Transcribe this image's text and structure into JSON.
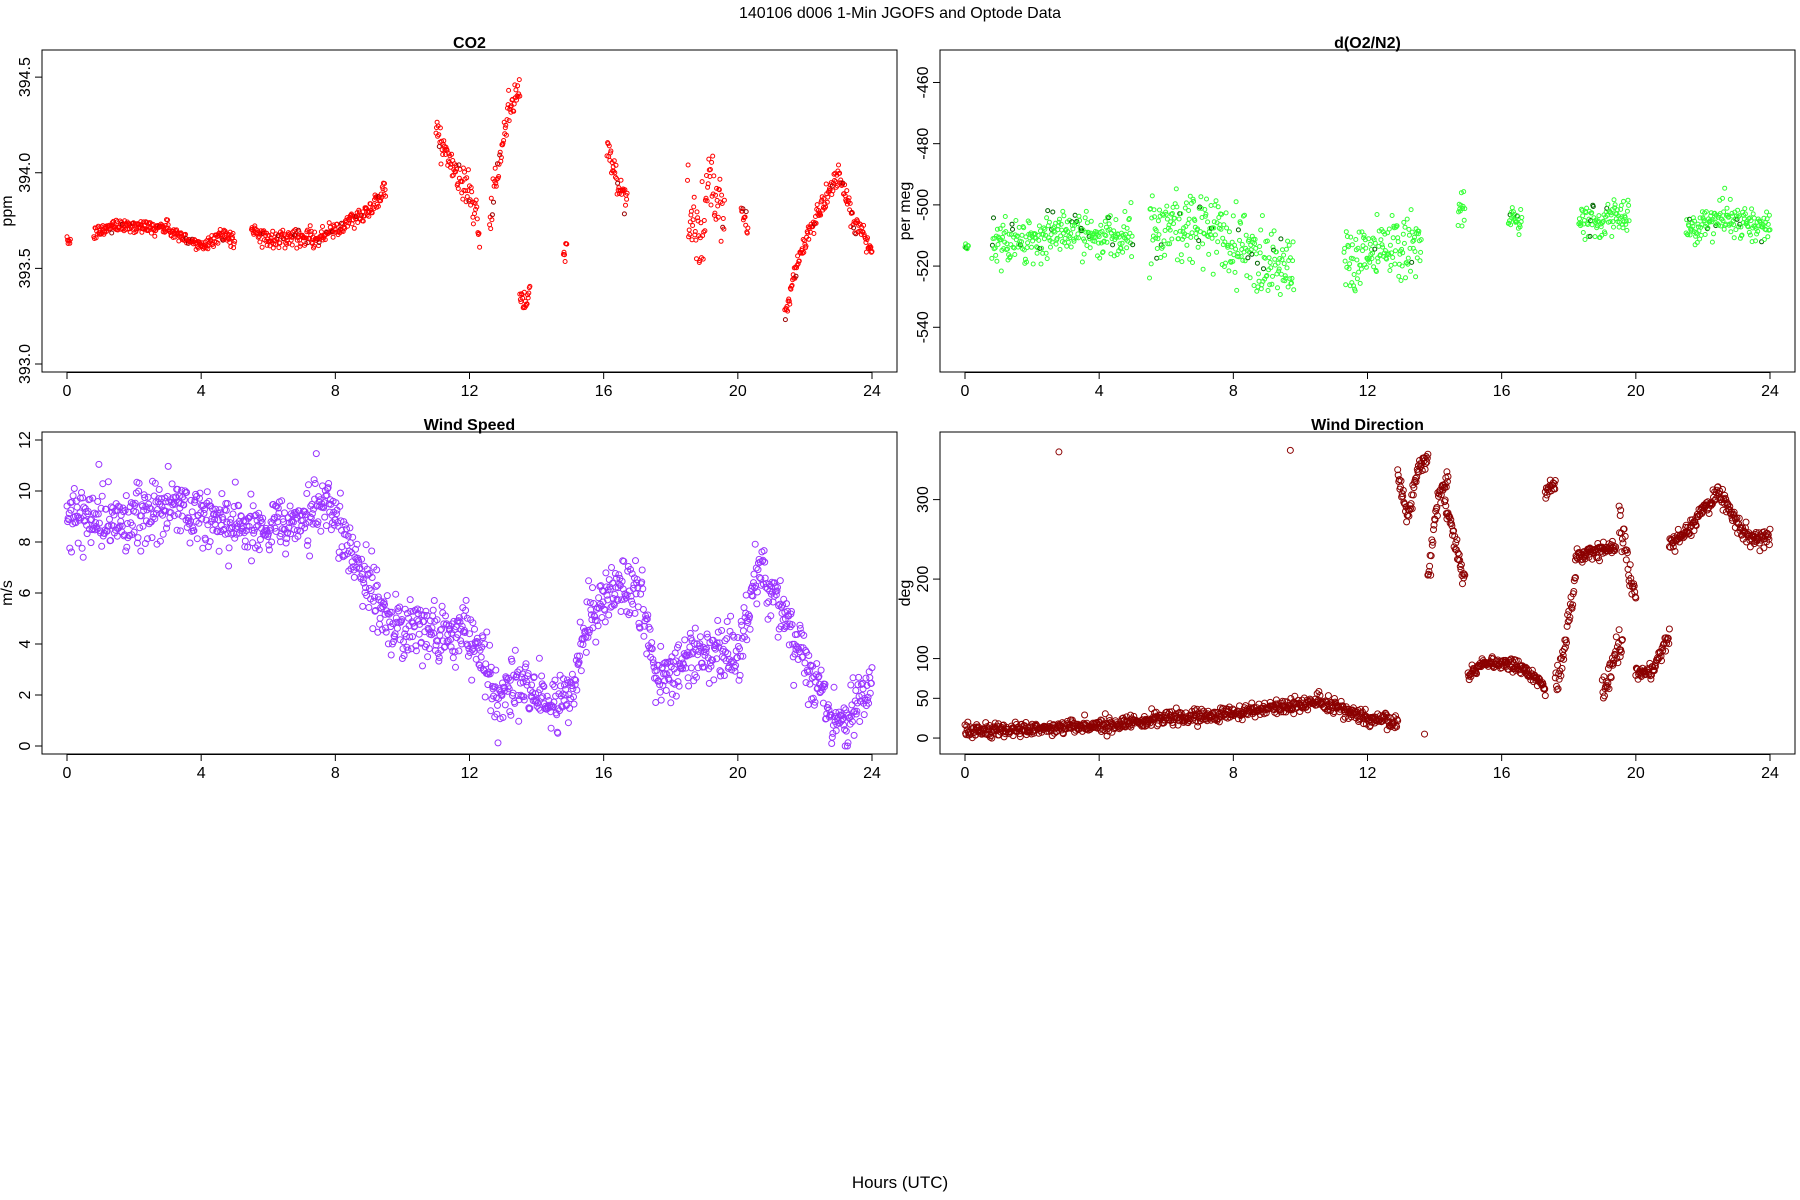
{
  "figure": {
    "title": "140106   d006   1-Min  JGOFS and Optode Data",
    "xlabel": "Hours (UTC)"
  },
  "chart_data": [
    {
      "type": "scatter",
      "title": "CO2",
      "ylabel": "ppm",
      "xlabel": "",
      "xlim": [
        0,
        24
      ],
      "ylim": [
        393.0,
        394.6
      ],
      "xticks": [
        0,
        4,
        8,
        12,
        16,
        20,
        24
      ],
      "yticks": [
        393.0,
        393.5,
        394.0,
        394.5
      ],
      "ytick_labels": [
        "393.0",
        "393.5",
        "394.0",
        "394.5"
      ],
      "grid": false,
      "series": [
        {
          "color": "#ff0000",
          "marker_radius": 2,
          "secondary_color": "#990000",
          "segments": [
            {
              "x": [
                0.0,
                0.1
              ],
              "y": [
                393.64,
                393.64
              ],
              "spread": 0.02
            },
            {
              "x": [
                0.8,
                1.5,
                2.2,
                3.0,
                3.6,
                4.1,
                4.6,
                5.0
              ],
              "y": [
                393.68,
                393.73,
                393.72,
                393.71,
                393.64,
                393.62,
                393.68,
                393.65
              ],
              "spread": 0.04
            },
            {
              "x": [
                5.5,
                6.0,
                6.8,
                7.5,
                8.0,
                8.6,
                9.0,
                9.5
              ],
              "y": [
                393.7,
                393.65,
                393.67,
                393.66,
                393.7,
                393.76,
                393.8,
                393.92
              ],
              "spread": 0.05
            },
            {
              "x": [
                11.0,
                11.4,
                11.8,
                12.1,
                12.3
              ],
              "y": [
                394.25,
                394.05,
                393.95,
                393.85,
                393.66
              ],
              "spread": 0.1
            },
            {
              "x": [
                12.6,
                12.9,
                13.2,
                13.5
              ],
              "y": [
                393.75,
                394.05,
                394.35,
                394.45
              ],
              "spread": 0.12
            },
            {
              "x": [
                13.5,
                13.7,
                13.8
              ],
              "y": [
                393.35,
                393.3,
                393.4
              ],
              "spread": 0.06
            },
            {
              "x": [
                14.8,
                14.9
              ],
              "y": [
                393.55,
                393.65
              ],
              "spread": 0.05
            },
            {
              "x": [
                16.1,
                16.4,
                16.7
              ],
              "y": [
                394.15,
                393.95,
                393.85
              ],
              "spread": 0.1
            },
            {
              "x": [
                18.5,
                18.9,
                19.2,
                19.6
              ],
              "y": [
                393.8,
                393.65,
                393.95,
                393.75
              ],
              "spread": 0.2
            },
            {
              "x": [
                20.1,
                20.3
              ],
              "y": [
                393.8,
                393.7
              ],
              "spread": 0.08
            },
            {
              "x": [
                21.4,
                21.8,
                22.2,
                22.6,
                23.0,
                23.4,
                23.8,
                24.0
              ],
              "y": [
                393.25,
                393.55,
                393.72,
                393.85,
                394.0,
                393.75,
                393.66,
                393.6
              ],
              "spread": 0.06
            }
          ]
        }
      ]
    },
    {
      "type": "scatter",
      "title": "d(O2/N2)",
      "ylabel": "per meg",
      "xlabel": "",
      "xlim": [
        0,
        24
      ],
      "ylim": [
        -552,
        -452
      ],
      "xticks": [
        0,
        4,
        8,
        12,
        16,
        20,
        24
      ],
      "yticks": [
        -540,
        -520,
        -500,
        -480,
        -460
      ],
      "ytick_labels": [
        "-540",
        "-520",
        "-500",
        "-480",
        "-460"
      ],
      "grid": false,
      "series": [
        {
          "color": "#33ff33",
          "marker_radius": 2,
          "secondary_color": "#006600",
          "segments": [
            {
              "x": [
                0.0,
                0.1
              ],
              "y": [
                -514,
                -514
              ],
              "spread": 2
            },
            {
              "x": [
                0.8,
                2.0,
                3.0,
                4.0,
                5.0
              ],
              "y": [
                -512,
                -511,
                -509,
                -510,
                -508
              ],
              "spread": 8
            },
            {
              "x": [
                5.5,
                6.5,
                7.5,
                8.5,
                9.8
              ],
              "y": [
                -510,
                -505,
                -510,
                -515,
                -520
              ],
              "spread": 15
            },
            {
              "x": [
                11.3,
                12.0,
                12.8,
                13.6
              ],
              "y": [
                -518,
                -515,
                -512,
                -514
              ],
              "spread": 12
            },
            {
              "x": [
                14.7,
                14.9
              ],
              "y": [
                -505,
                -500
              ],
              "spread": 6
            },
            {
              "x": [
                16.2,
                16.6
              ],
              "y": [
                -505,
                -506
              ],
              "spread": 5
            },
            {
              "x": [
                18.3,
                19.0,
                19.8
              ],
              "y": [
                -506,
                -505,
                -504
              ],
              "spread": 6
            },
            {
              "x": [
                21.5,
                22.5,
                23.5,
                24.0
              ],
              "y": [
                -507,
                -505,
                -506,
                -507
              ],
              "spread": 6
            }
          ]
        }
      ]
    },
    {
      "type": "scatter",
      "title": "Wind Speed",
      "ylabel": "m/s",
      "xlabel": "",
      "xlim": [
        0,
        24
      ],
      "ylim": [
        0,
        12
      ],
      "xticks": [
        0,
        4,
        8,
        12,
        16,
        20,
        24
      ],
      "yticks": [
        0,
        2,
        4,
        6,
        8,
        10,
        12
      ],
      "ytick_labels": [
        "0",
        "2",
        "4",
        "6",
        "8",
        "10",
        "12"
      ],
      "grid": false,
      "series": [
        {
          "color": "#9933ff",
          "marker_radius": 3,
          "segments": [
            {
              "x": [
                0.0,
                1.0,
                2.0,
                3.0,
                4.0,
                5.0,
                6.0,
                7.0,
                7.8,
                8.5,
                9.5,
                10.5,
                11.5,
                12.2,
                12.8,
                13.5,
                14.3,
                15.0,
                15.5,
                16.2,
                17.0,
                17.6,
                18.5,
                19.3,
                20.0,
                20.6,
                21.3,
                22.0,
                22.7,
                23.2,
                24.0
              ],
              "y": [
                9.0,
                8.8,
                8.9,
                9.4,
                9.0,
                8.8,
                8.5,
                9.0,
                9.5,
                7.5,
                5.0,
                4.5,
                4.3,
                4.2,
                1.8,
                2.5,
                1.5,
                2.0,
                5.0,
                6.0,
                6.2,
                2.5,
                3.5,
                3.8,
                3.5,
                7.0,
                5.0,
                3.5,
                1.5,
                1.0,
                2.5
              ],
              "spread": 1.3
            }
          ]
        }
      ]
    },
    {
      "type": "scatter",
      "title": "Wind Direction",
      "ylabel": "deg",
      "xlabel": "",
      "xlim": [
        0,
        24
      ],
      "ylim": [
        -10,
        375
      ],
      "xticks": [
        0,
        4,
        8,
        12,
        16,
        20,
        24
      ],
      "yticks": [
        0,
        50,
        100,
        200,
        300
      ],
      "ytick_labels": [
        "0",
        "50",
        "100",
        "200",
        "300"
      ],
      "grid": false,
      "series": [
        {
          "color": "#8b0000",
          "marker_radius": 3,
          "segments": [
            {
              "x": [
                0.0,
                2.0,
                4.0,
                6.0,
                8.0,
                9.5,
                10.5,
                12.0,
                12.9
              ],
              "y": [
                8,
                12,
                15,
                25,
                30,
                40,
                45,
                25,
                20
              ],
              "spread": 10
            },
            {
              "x": [
                12.9,
                13.2,
                13.5,
                13.8
              ],
              "y": [
                330,
                280,
                340,
                350
              ],
              "spread": 15
            },
            {
              "x": [
                13.8,
                14.1,
                14.4
              ],
              "y": [
                200,
                300,
                330
              ],
              "spread": 20
            },
            {
              "x": [
                14.3,
                14.6,
                14.9
              ],
              "y": [
                300,
                250,
                200
              ],
              "spread": 15
            },
            {
              "x": [
                15.0,
                15.5,
                16.0,
                16.5,
                17.0,
                17.3
              ],
              "y": [
                80,
                95,
                95,
                90,
                75,
                60
              ],
              "spread": 8
            },
            {
              "x": [
                17.3,
                17.6
              ],
              "y": [
                310,
                320
              ],
              "spread": 12
            },
            {
              "x": [
                17.6,
                17.9,
                18.2
              ],
              "y": [
                60,
                120,
                200
              ],
              "spread": 25
            },
            {
              "x": [
                18.2,
                18.8,
                19.4
              ],
              "y": [
                230,
                235,
                240
              ],
              "spread": 10
            },
            {
              "x": [
                19.5,
                19.8,
                20.0
              ],
              "y": [
                280,
                210,
                180
              ],
              "spread": 25
            },
            {
              "x": [
                19.0,
                19.3,
                19.6
              ],
              "y": [
                60,
                90,
                120
              ],
              "spread": 25
            },
            {
              "x": [
                20.0,
                20.5,
                21.0
              ],
              "y": [
                80,
                85,
                130
              ],
              "spread": 10
            },
            {
              "x": [
                21.0,
                21.5,
                22.0,
                22.5,
                23.0,
                23.5,
                24.0
              ],
              "y": [
                245,
                260,
                285,
                310,
                270,
                250,
                255
              ],
              "spread": 12
            }
          ],
          "outliers": {
            "x": [
              2.8,
              9.7,
              13.7
            ],
            "y": [
              360,
              362,
              5
            ]
          }
        }
      ]
    }
  ]
}
